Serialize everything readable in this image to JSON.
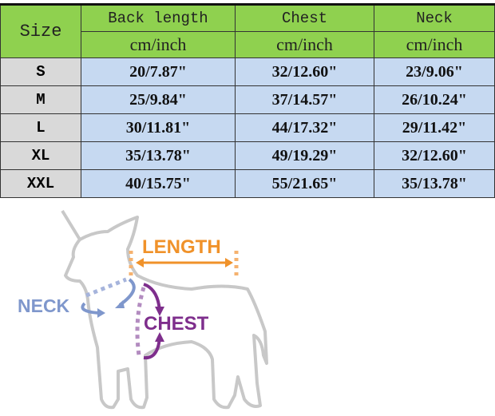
{
  "table": {
    "size_header": "Size",
    "columns": [
      {
        "name": "Back length",
        "unit": "cm/inch"
      },
      {
        "name": "Chest",
        "unit": "cm/inch"
      },
      {
        "name": "Neck",
        "unit": "cm/inch"
      }
    ],
    "rows": [
      {
        "size": "S",
        "values": [
          "20/7.87\"",
          "32/12.60\"",
          "23/9.06\""
        ]
      },
      {
        "size": "M",
        "values": [
          "25/9.84\"",
          "37/14.57\"",
          "26/10.24\""
        ]
      },
      {
        "size": "L",
        "values": [
          "30/11.81\"",
          "44/17.32\"",
          "29/11.42\""
        ]
      },
      {
        "size": "XL",
        "values": [
          "35/13.78\"",
          "49/19.29\"",
          "32/12.60\""
        ]
      },
      {
        "size": "XXL",
        "values": [
          "40/15.75\"",
          "55/21.65\"",
          "35/13.78\""
        ]
      }
    ],
    "colors": {
      "header": "#8fd14f",
      "size_cells": "#d9d9d9",
      "value_cells": "#c6d9f1"
    }
  },
  "diagram": {
    "length_label": "LENGTH",
    "neck_label": "NECK",
    "chest_label": "CHEST",
    "colors": {
      "length": "#f0922a",
      "neck": "#7f97cc",
      "chest": "#7e2e8c",
      "outline": "#c8c8c8"
    }
  }
}
